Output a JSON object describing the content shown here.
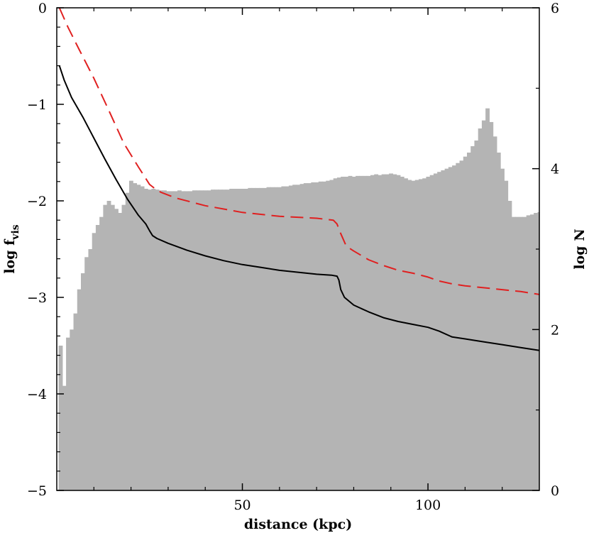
{
  "chart_data": {
    "type": "line",
    "xlabel": "distance (kpc)",
    "ylabel_left": {
      "main": "log f",
      "sub": "vis"
    },
    "ylabel_right": "log N",
    "xlim": [
      0,
      130
    ],
    "ylim_left": [
      -5,
      0
    ],
    "ylim_right": [
      0,
      6
    ],
    "x_ticks": [
      50,
      100
    ],
    "x_tick_labels": [
      "50",
      "100"
    ],
    "y_left_ticks": [
      0,
      -1,
      -2,
      -3,
      -4,
      -5
    ],
    "y_left_tick_labels": [
      "0",
      "−1",
      "−2",
      "−3",
      "−4",
      "−5"
    ],
    "y_right_ticks": [
      0,
      2,
      4,
      6
    ],
    "y_right_tick_labels": [
      "0",
      "2",
      "4",
      "6"
    ],
    "series": [
      {
        "style": "solid",
        "color": "#000000",
        "axis": "left",
        "x": [
          0.7,
          2,
          4,
          7,
          10,
          13,
          16,
          19,
          22,
          24,
          25,
          25.8,
          27,
          30,
          35,
          40,
          45,
          50,
          55,
          60,
          65,
          70,
          74,
          75.5,
          76,
          76.5,
          77.5,
          80,
          84,
          88,
          92,
          96,
          100,
          103,
          106.5,
          110,
          115,
          120,
          125,
          130
        ],
        "y": [
          -0.6,
          -0.75,
          -0.93,
          -1.13,
          -1.35,
          -1.57,
          -1.78,
          -1.98,
          -2.15,
          -2.24,
          -2.31,
          -2.36,
          -2.39,
          -2.44,
          -2.51,
          -2.57,
          -2.62,
          -2.66,
          -2.69,
          -2.72,
          -2.74,
          -2.76,
          -2.77,
          -2.78,
          -2.82,
          -2.92,
          -3.0,
          -3.08,
          -3.15,
          -3.21,
          -3.25,
          -3.28,
          -3.31,
          -3.35,
          -3.41,
          -3.43,
          -3.46,
          -3.49,
          -3.52,
          -3.55
        ]
      },
      {
        "style": "dashed",
        "color": "#e02020",
        "axis": "left",
        "x": [
          0.7,
          3,
          6,
          10,
          14,
          18,
          22,
          25,
          26,
          28,
          32,
          40,
          50,
          60,
          70,
          74.5,
          75.5,
          76.5,
          78,
          80,
          84,
          88,
          92,
          96,
          100,
          103,
          106.5,
          110,
          115,
          120,
          125,
          130
        ],
        "y": [
          0.0,
          -0.2,
          -0.43,
          -0.73,
          -1.06,
          -1.4,
          -1.65,
          -1.83,
          -1.86,
          -1.91,
          -1.97,
          -2.05,
          -2.12,
          -2.16,
          -2.18,
          -2.2,
          -2.24,
          -2.34,
          -2.47,
          -2.52,
          -2.61,
          -2.67,
          -2.72,
          -2.75,
          -2.79,
          -2.83,
          -2.86,
          -2.88,
          -2.9,
          -2.92,
          -2.94,
          -2.97
        ]
      }
    ],
    "histogram": {
      "axis": "right",
      "color": "#b4b4b4",
      "bin_width": 1,
      "x_start": 0.5,
      "values": [
        1.8,
        1.3,
        1.9,
        2.0,
        2.2,
        2.5,
        2.7,
        2.9,
        3.0,
        3.2,
        3.3,
        3.4,
        3.55,
        3.6,
        3.55,
        3.5,
        3.45,
        3.55,
        3.7,
        3.85,
        3.82,
        3.8,
        3.78,
        3.75,
        3.74,
        3.75,
        3.74,
        3.73,
        3.73,
        3.72,
        3.72,
        3.72,
        3.73,
        3.72,
        3.72,
        3.72,
        3.73,
        3.73,
        3.73,
        3.73,
        3.73,
        3.74,
        3.74,
        3.74,
        3.74,
        3.74,
        3.75,
        3.75,
        3.75,
        3.75,
        3.75,
        3.76,
        3.76,
        3.76,
        3.76,
        3.76,
        3.77,
        3.77,
        3.77,
        3.77,
        3.78,
        3.78,
        3.79,
        3.8,
        3.8,
        3.81,
        3.82,
        3.82,
        3.83,
        3.83,
        3.84,
        3.84,
        3.85,
        3.86,
        3.88,
        3.89,
        3.9,
        3.9,
        3.91,
        3.9,
        3.91,
        3.91,
        3.91,
        3.91,
        3.92,
        3.93,
        3.92,
        3.93,
        3.93,
        3.94,
        3.93,
        3.92,
        3.9,
        3.88,
        3.86,
        3.85,
        3.86,
        3.87,
        3.88,
        3.9,
        3.92,
        3.94,
        3.96,
        3.98,
        4.0,
        4.02,
        4.04,
        4.07,
        4.1,
        4.15,
        4.2,
        4.28,
        4.35,
        4.5,
        4.6,
        4.75,
        4.58,
        4.4,
        4.2,
        4.0,
        3.85,
        3.6,
        3.4,
        3.4,
        3.4,
        3.4,
        3.42,
        3.43,
        3.45,
        3.46,
        3.48,
        3.48,
        3.5,
        3.5
      ]
    },
    "grid": false,
    "legend": "none"
  }
}
